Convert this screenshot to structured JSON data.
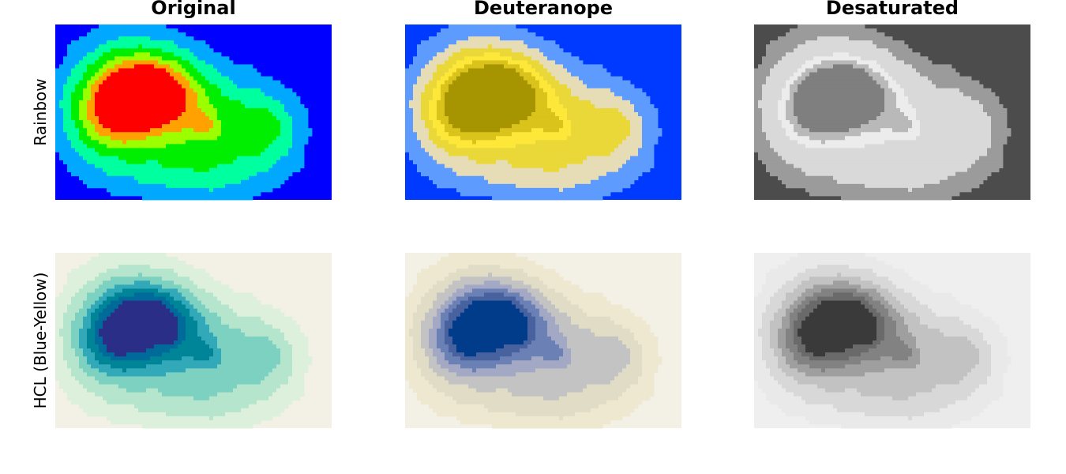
{
  "chart_data": {
    "type": "heatmap",
    "column_titles": [
      "Original",
      "Deuteranope",
      "Desaturated"
    ],
    "row_labels": [
      "Rainbow",
      "HCL (Blue-Yellow)"
    ],
    "levels": 8,
    "grid": false,
    "panels": [
      {
        "row": "Rainbow",
        "column": "Original",
        "palette": [
          "#0000ff",
          "#00a8ff",
          "#00ff9e",
          "#00ee00",
          "#9cff00",
          "#ffa100",
          "#ff0000",
          "#ff0000"
        ]
      },
      {
        "row": "Rainbow",
        "column": "Deuteranope",
        "palette": [
          "#0039ff",
          "#5e9bff",
          "#e6dcb6",
          "#ead839",
          "#fde739",
          "#dac31a",
          "#a69400",
          "#a69400"
        ]
      },
      {
        "row": "Rainbow",
        "column": "Desaturated",
        "palette": [
          "#4c4c4c",
          "#9b9b9b",
          "#d9d9d9",
          "#d9d9d9",
          "#ececec",
          "#b9b9b9",
          "#7f7f7f",
          "#7f7f7f"
        ]
      },
      {
        "row": "HCL (Blue-Yellow)",
        "column": "Original",
        "palette": [
          "#f3f0e6",
          "#dcf0dc",
          "#b5e5cc",
          "#7dd1c0",
          "#32a9b8",
          "#008498",
          "#006a9a",
          "#2b2e86"
        ]
      },
      {
        "row": "HCL (Blue-Yellow)",
        "column": "Deuteranope",
        "palette": [
          "#f3f0e6",
          "#efe8d1",
          "#e0dcc6",
          "#c3c3c3",
          "#a3a9c4",
          "#6b80b5",
          "#47629f",
          "#003c8a"
        ]
      },
      {
        "row": "HCL (Blue-Yellow)",
        "column": "Desaturated",
        "palette": [
          "#efefef",
          "#e9e9e9",
          "#d8d8d8",
          "#c2c2c2",
          "#9f9f9f",
          "#828282",
          "#6a6a6a",
          "#3a3a3a"
        ]
      }
    ]
  }
}
